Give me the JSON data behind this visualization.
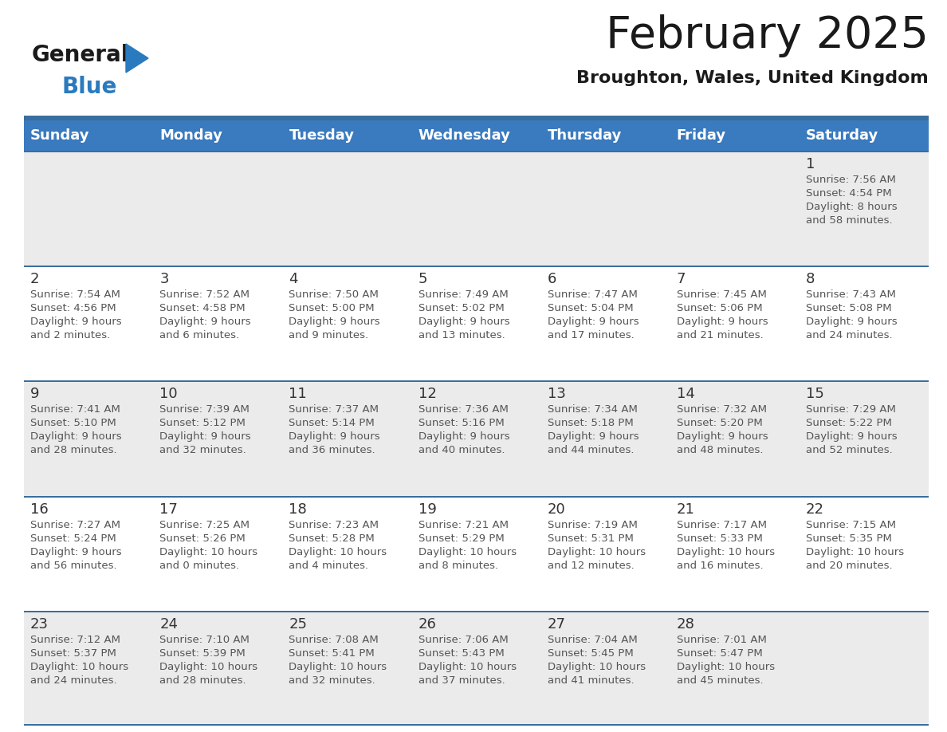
{
  "title": "February 2025",
  "subtitle": "Broughton, Wales, United Kingdom",
  "days_of_week": [
    "Sunday",
    "Monday",
    "Tuesday",
    "Wednesday",
    "Thursday",
    "Friday",
    "Saturday"
  ],
  "header_bg": "#3a7abf",
  "header_text": "#ffffff",
  "row_bg_even": "#ebebeb",
  "row_bg_odd": "#ffffff",
  "separator_color": "#3a6e9e",
  "day_number_color": "#333333",
  "cell_text_color": "#555555",
  "calendar_data": [
    [
      {
        "day": null,
        "info": null
      },
      {
        "day": null,
        "info": null
      },
      {
        "day": null,
        "info": null
      },
      {
        "day": null,
        "info": null
      },
      {
        "day": null,
        "info": null
      },
      {
        "day": null,
        "info": null
      },
      {
        "day": 1,
        "info": "Sunrise: 7:56 AM\nSunset: 4:54 PM\nDaylight: 8 hours\nand 58 minutes."
      }
    ],
    [
      {
        "day": 2,
        "info": "Sunrise: 7:54 AM\nSunset: 4:56 PM\nDaylight: 9 hours\nand 2 minutes."
      },
      {
        "day": 3,
        "info": "Sunrise: 7:52 AM\nSunset: 4:58 PM\nDaylight: 9 hours\nand 6 minutes."
      },
      {
        "day": 4,
        "info": "Sunrise: 7:50 AM\nSunset: 5:00 PM\nDaylight: 9 hours\nand 9 minutes."
      },
      {
        "day": 5,
        "info": "Sunrise: 7:49 AM\nSunset: 5:02 PM\nDaylight: 9 hours\nand 13 minutes."
      },
      {
        "day": 6,
        "info": "Sunrise: 7:47 AM\nSunset: 5:04 PM\nDaylight: 9 hours\nand 17 minutes."
      },
      {
        "day": 7,
        "info": "Sunrise: 7:45 AM\nSunset: 5:06 PM\nDaylight: 9 hours\nand 21 minutes."
      },
      {
        "day": 8,
        "info": "Sunrise: 7:43 AM\nSunset: 5:08 PM\nDaylight: 9 hours\nand 24 minutes."
      }
    ],
    [
      {
        "day": 9,
        "info": "Sunrise: 7:41 AM\nSunset: 5:10 PM\nDaylight: 9 hours\nand 28 minutes."
      },
      {
        "day": 10,
        "info": "Sunrise: 7:39 AM\nSunset: 5:12 PM\nDaylight: 9 hours\nand 32 minutes."
      },
      {
        "day": 11,
        "info": "Sunrise: 7:37 AM\nSunset: 5:14 PM\nDaylight: 9 hours\nand 36 minutes."
      },
      {
        "day": 12,
        "info": "Sunrise: 7:36 AM\nSunset: 5:16 PM\nDaylight: 9 hours\nand 40 minutes."
      },
      {
        "day": 13,
        "info": "Sunrise: 7:34 AM\nSunset: 5:18 PM\nDaylight: 9 hours\nand 44 minutes."
      },
      {
        "day": 14,
        "info": "Sunrise: 7:32 AM\nSunset: 5:20 PM\nDaylight: 9 hours\nand 48 minutes."
      },
      {
        "day": 15,
        "info": "Sunrise: 7:29 AM\nSunset: 5:22 PM\nDaylight: 9 hours\nand 52 minutes."
      }
    ],
    [
      {
        "day": 16,
        "info": "Sunrise: 7:27 AM\nSunset: 5:24 PM\nDaylight: 9 hours\nand 56 minutes."
      },
      {
        "day": 17,
        "info": "Sunrise: 7:25 AM\nSunset: 5:26 PM\nDaylight: 10 hours\nand 0 minutes."
      },
      {
        "day": 18,
        "info": "Sunrise: 7:23 AM\nSunset: 5:28 PM\nDaylight: 10 hours\nand 4 minutes."
      },
      {
        "day": 19,
        "info": "Sunrise: 7:21 AM\nSunset: 5:29 PM\nDaylight: 10 hours\nand 8 minutes."
      },
      {
        "day": 20,
        "info": "Sunrise: 7:19 AM\nSunset: 5:31 PM\nDaylight: 10 hours\nand 12 minutes."
      },
      {
        "day": 21,
        "info": "Sunrise: 7:17 AM\nSunset: 5:33 PM\nDaylight: 10 hours\nand 16 minutes."
      },
      {
        "day": 22,
        "info": "Sunrise: 7:15 AM\nSunset: 5:35 PM\nDaylight: 10 hours\nand 20 minutes."
      }
    ],
    [
      {
        "day": 23,
        "info": "Sunrise: 7:12 AM\nSunset: 5:37 PM\nDaylight: 10 hours\nand 24 minutes."
      },
      {
        "day": 24,
        "info": "Sunrise: 7:10 AM\nSunset: 5:39 PM\nDaylight: 10 hours\nand 28 minutes."
      },
      {
        "day": 25,
        "info": "Sunrise: 7:08 AM\nSunset: 5:41 PM\nDaylight: 10 hours\nand 32 minutes."
      },
      {
        "day": 26,
        "info": "Sunrise: 7:06 AM\nSunset: 5:43 PM\nDaylight: 10 hours\nand 37 minutes."
      },
      {
        "day": 27,
        "info": "Sunrise: 7:04 AM\nSunset: 5:45 PM\nDaylight: 10 hours\nand 41 minutes."
      },
      {
        "day": 28,
        "info": "Sunrise: 7:01 AM\nSunset: 5:47 PM\nDaylight: 10 hours\nand 45 minutes."
      },
      {
        "day": null,
        "info": null
      }
    ]
  ],
  "logo_text_general": "General",
  "logo_text_blue": "Blue",
  "logo_color_general": "#1a1a1a",
  "logo_color_blue": "#2a7abf",
  "logo_triangle_color": "#2a7abf",
  "title_fontsize": 40,
  "subtitle_fontsize": 16,
  "header_fontsize": 13,
  "day_num_fontsize": 13,
  "cell_fontsize": 9.5
}
